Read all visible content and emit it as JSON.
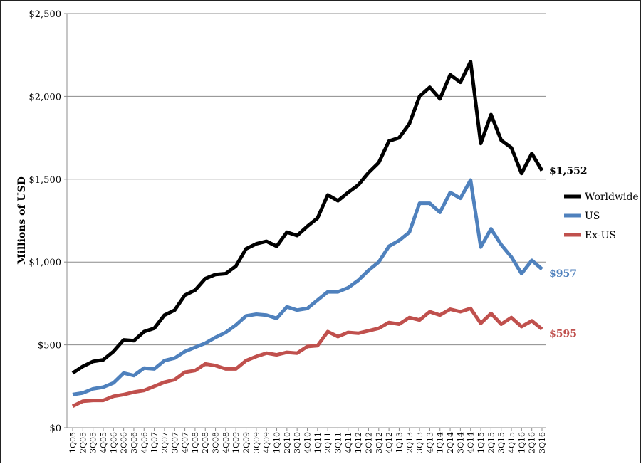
{
  "chart_data": {
    "type": "line",
    "title": "",
    "xlabel": "",
    "ylabel": "Millions of USD",
    "ylim": [
      0,
      2500
    ],
    "yticks": [
      0,
      500,
      1000,
      1500,
      2000,
      2500
    ],
    "ytick_labels": [
      "$0",
      "$500",
      "$1,000",
      "$1,500",
      "$2,000",
      "$2,500"
    ],
    "grid": "horizontal",
    "legend_position": "right",
    "categories": [
      "1Q05",
      "2Q05",
      "3Q05",
      "4Q05",
      "1Q06",
      "2Q06",
      "3Q06",
      "4Q06",
      "1Q07",
      "2Q07",
      "3Q07",
      "4Q07",
      "1Q08",
      "2Q08",
      "3Q08",
      "4Q08",
      "1Q09",
      "2Q09",
      "3Q09",
      "4Q09",
      "1Q10",
      "2Q10",
      "3Q10",
      "4Q10",
      "1Q11",
      "2Q11",
      "3Q11",
      "4Q11",
      "1Q12",
      "2Q12",
      "3Q12",
      "4Q12",
      "1Q13",
      "2Q13",
      "3Q13",
      "4Q13",
      "1Q14",
      "2Q14",
      "3Q14",
      "4Q14",
      "1Q15",
      "2Q15",
      "3Q15",
      "4Q15",
      "1Q16",
      "2Q16",
      "3Q16"
    ],
    "series": [
      {
        "name": "Worldwide",
        "color": "#000000",
        "end_label": "$1,552",
        "values": [
          330,
          370,
          400,
          410,
          460,
          530,
          525,
          580,
          600,
          680,
          710,
          800,
          830,
          900,
          925,
          930,
          975,
          1080,
          1110,
          1125,
          1095,
          1180,
          1160,
          1215,
          1265,
          1405,
          1370,
          1420,
          1465,
          1540,
          1600,
          1730,
          1750,
          1835,
          2000,
          2055,
          1985,
          2130,
          2085,
          2210,
          1715,
          1890,
          1735,
          1690,
          1535,
          1655,
          1552
        ]
      },
      {
        "name": "US",
        "color": "#4f81bd",
        "end_label": "$957",
        "values": [
          200,
          210,
          235,
          245,
          270,
          330,
          315,
          360,
          355,
          405,
          420,
          460,
          485,
          510,
          545,
          575,
          620,
          675,
          685,
          680,
          660,
          730,
          710,
          720,
          770,
          820,
          820,
          845,
          890,
          950,
          1000,
          1095,
          1130,
          1180,
          1355,
          1355,
          1300,
          1420,
          1385,
          1495,
          1090,
          1200,
          1105,
          1030,
          930,
          1010,
          957
        ]
      },
      {
        "name": "Ex-US",
        "color": "#c0504d",
        "end_label": "$595",
        "values": [
          130,
          160,
          165,
          165,
          190,
          200,
          215,
          225,
          250,
          275,
          290,
          335,
          345,
          385,
          375,
          355,
          355,
          405,
          430,
          450,
          440,
          455,
          450,
          490,
          495,
          580,
          550,
          575,
          570,
          585,
          600,
          635,
          625,
          665,
          650,
          700,
          680,
          715,
          700,
          720,
          630,
          690,
          625,
          665,
          610,
          645,
          595
        ]
      }
    ]
  }
}
